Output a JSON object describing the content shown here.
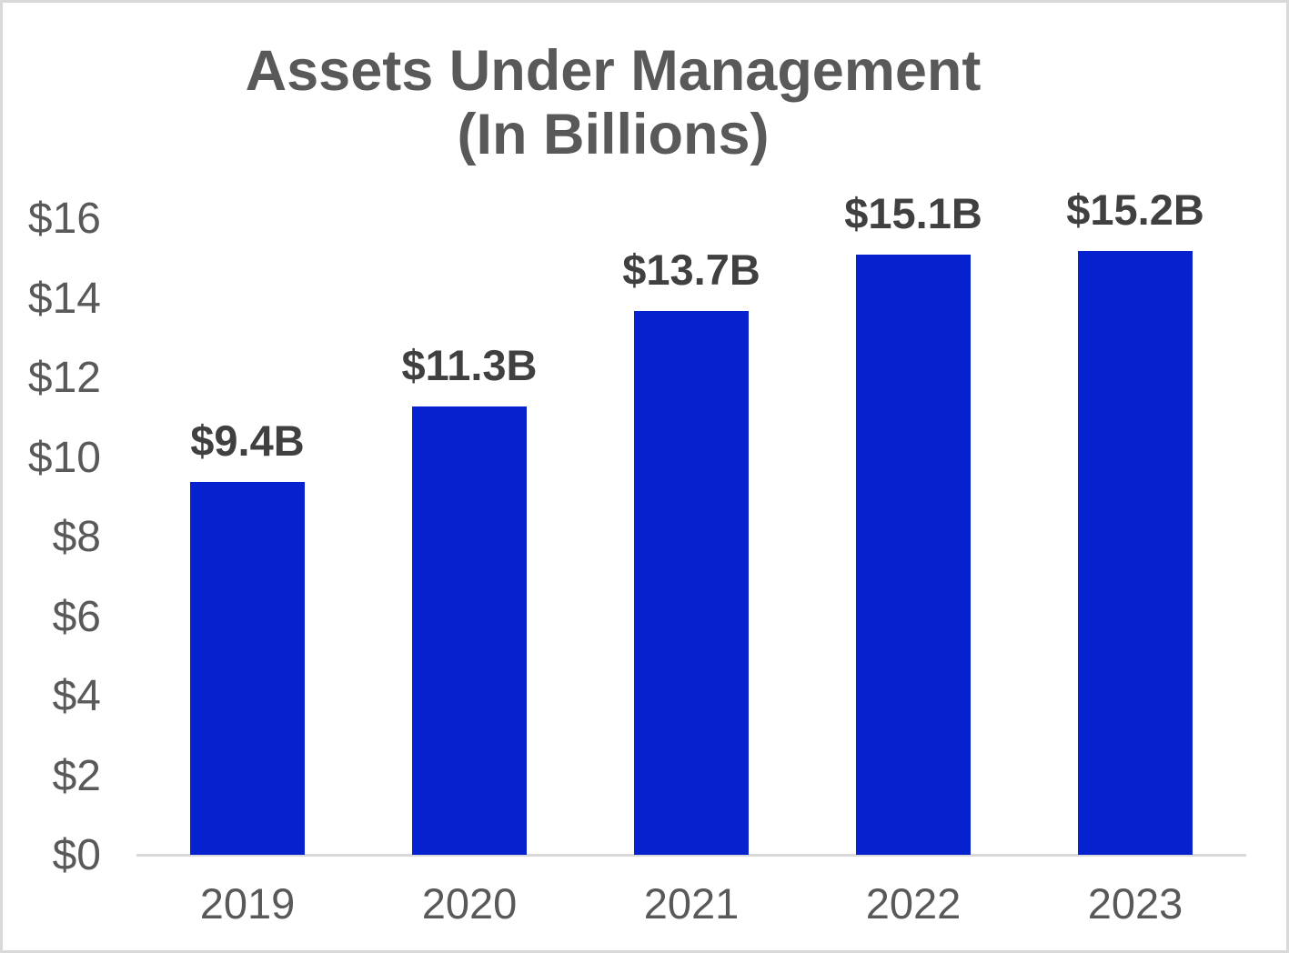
{
  "title": {
    "line1": "Assets Under Management",
    "line2": "(In Billions)"
  },
  "chart_data": {
    "type": "bar",
    "title": "Assets Under Management (In Billions)",
    "categories": [
      "2019",
      "2020",
      "2021",
      "2022",
      "2023"
    ],
    "values": [
      9.4,
      11.3,
      13.7,
      15.1,
      15.2
    ],
    "data_labels": [
      "$9.4B",
      "$11.3B",
      "$13.7B",
      "$15.1B",
      "$15.2B"
    ],
    "xlabel": "",
    "ylabel": "",
    "ylim": [
      0,
      16
    ],
    "y_tick_values": [
      16,
      14,
      12,
      10,
      8,
      6,
      4,
      2,
      0
    ],
    "y_tick_labels": [
      "$16",
      "$14",
      "$12",
      "$10",
      "$8",
      "$6",
      "$4",
      "$2",
      "$0"
    ],
    "grid": false,
    "legend": false
  },
  "colors": {
    "bar_fill": "#0522CE",
    "title_text": "#595959",
    "axis_text": "#595959",
    "data_label_text": "#404040",
    "axis_line": "#d9d9d9",
    "frame_border": "#d9d9d9",
    "background": "#ffffff"
  }
}
